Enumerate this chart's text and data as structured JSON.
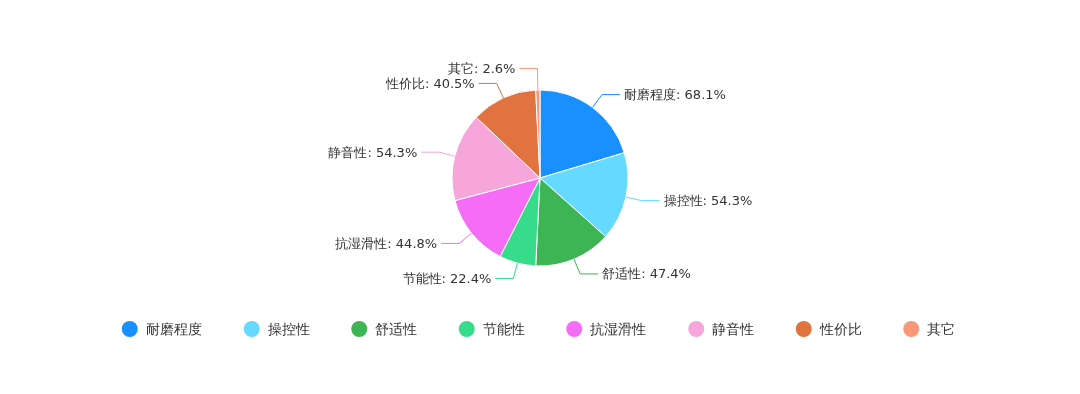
{
  "chart_data": {
    "type": "pie",
    "categories": [
      "耐磨程度",
      "操控性",
      "舒适性",
      "节能性",
      "抗湿滑性",
      "静音性",
      "性价比",
      "其它"
    ],
    "values": [
      68.1,
      54.3,
      47.4,
      22.4,
      44.8,
      54.3,
      40.5,
      2.6
    ],
    "value_labels": [
      "耐磨程度: 68.1%",
      "操控性: 54.3%",
      "舒适性: 47.4%",
      "节能性: 22.4%",
      "抗湿滑性: 44.8%",
      "静音性: 54.3%",
      "性价比: 40.5%",
      "其它: 2.6%"
    ],
    "colors": [
      "#1890ff",
      "#66d9ff",
      "#3db554",
      "#36dc8c",
      "#f56cf5",
      "#f7a6dc",
      "#e0733f",
      "#f79879"
    ],
    "legend": "bottom"
  }
}
